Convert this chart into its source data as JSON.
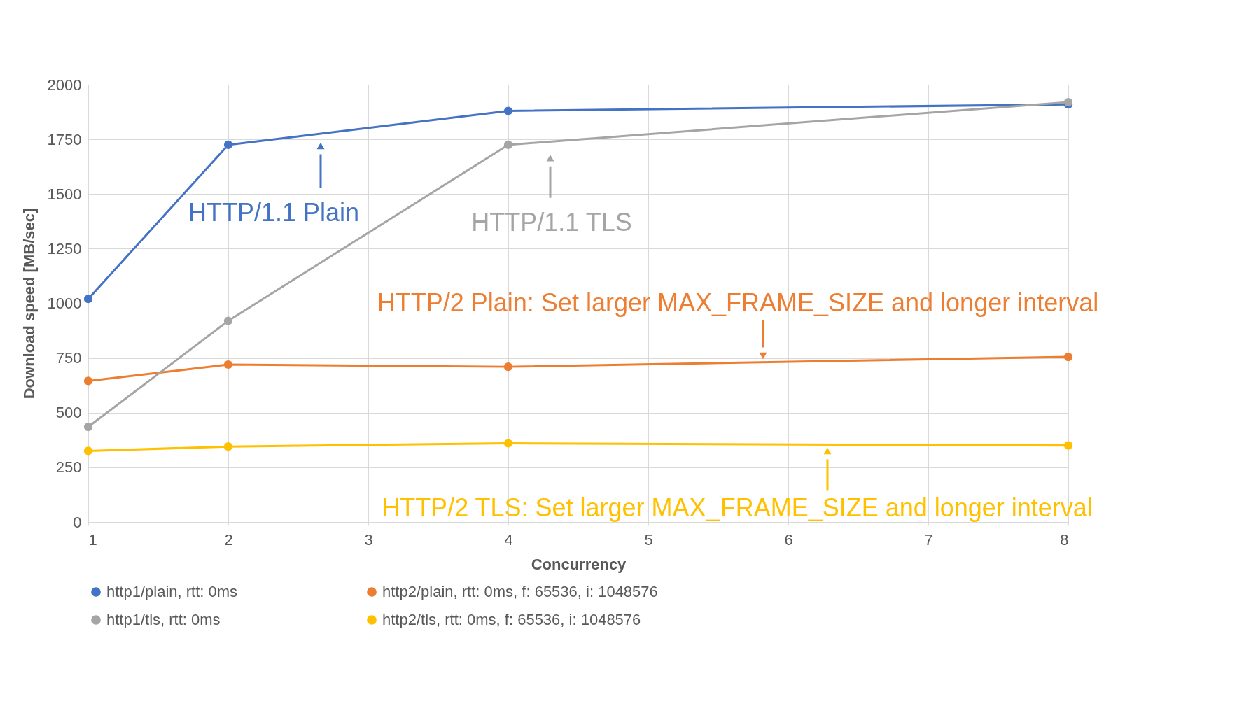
{
  "chart_data": {
    "type": "line",
    "xlabel": "Concurrency",
    "ylabel": "Download speed [MB/sec]",
    "x": [
      1,
      2,
      4,
      8
    ],
    "series": [
      {
        "name": "http1/plain, rtt: 0ms",
        "color": "#4472c4",
        "values": [
          1020,
          1725,
          1880,
          1910
        ]
      },
      {
        "name": "http2/plain, rtt: 0ms, f: 65536, i: 1048576",
        "color": "#ed7d31",
        "values": [
          645,
          720,
          710,
          755
        ]
      },
      {
        "name": "http1/tls, rtt: 0ms",
        "color": "#a5a5a5",
        "values": [
          435,
          920,
          1725,
          1920
        ]
      },
      {
        "name": "http2/tls, rtt: 0ms, f: 65536, i: 1048576",
        "color": "#ffc000",
        "values": [
          325,
          345,
          360,
          350
        ]
      }
    ],
    "annotations": [
      {
        "text": "HTTP/1.1 Plain",
        "x": 2.66,
        "y": 1720
      },
      {
        "text": "HTTP/2 Plain: Set larger MAX_FRAME_SIZE and longer interval",
        "x": 5.82,
        "y": 760
      },
      {
        "text": "HTTP/1.1 TLS",
        "x": 4.3,
        "y": 1665
      },
      {
        "text": "HTTP/2 TLS: Set larger MAX_FRAME_SIZE and longer interval",
        "x": 6.28,
        "y": 325
      }
    ],
    "xlim": [
      1,
      8
    ],
    "xticks": [
      1,
      2,
      3,
      4,
      5,
      6,
      7,
      8
    ],
    "ylim": [
      0,
      2000
    ],
    "yticks": [
      0,
      250,
      500,
      750,
      1000,
      1250,
      1500,
      1750,
      2000
    ],
    "grid": true,
    "legend": "bottom",
    "marker": "circle",
    "line_style": "solid"
  }
}
